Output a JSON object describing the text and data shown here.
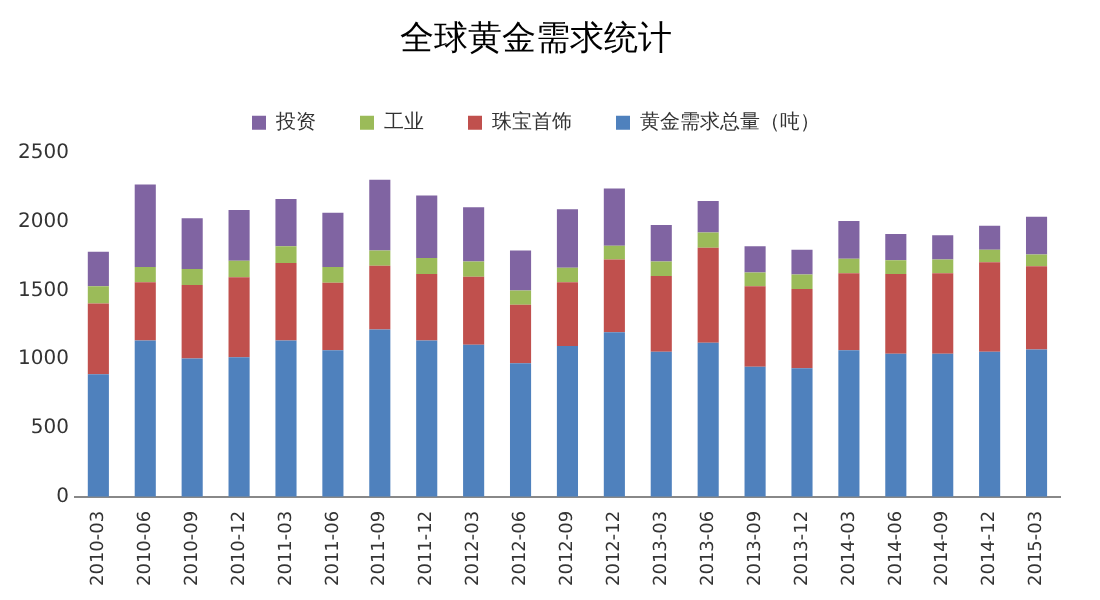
{
  "chart_data": {
    "type": "bar",
    "title": "全球黄金需求统计",
    "stacked": true,
    "categories": [
      "2010-03",
      "2010-06",
      "2010-09",
      "2010-12",
      "2011-03",
      "2011-06",
      "2011-09",
      "2011-12",
      "2012-03",
      "2012-06",
      "2012-09",
      "2012-12",
      "2013-03",
      "2013-06",
      "2013-09",
      "2013-12",
      "2014-03",
      "2014-06",
      "2014-09",
      "2014-12",
      "2015-03"
    ],
    "series": [
      {
        "name": "黄金需求总量（吨）",
        "color": "#4f81bd",
        "values": [
          890,
          1135,
          1005,
          1015,
          1135,
          1065,
          1215,
          1135,
          1105,
          970,
          1095,
          1195,
          1055,
          1120,
          945,
          935,
          1065,
          1040,
          1040,
          1055,
          1070
        ]
      },
      {
        "name": "珠宝首饰",
        "color": "#c0504d",
        "values": [
          515,
          425,
          535,
          580,
          565,
          490,
          465,
          485,
          495,
          425,
          465,
          530,
          550,
          690,
          585,
          575,
          560,
          580,
          585,
          650,
          605
        ]
      },
      {
        "name": "工业",
        "color": "#9bbb59",
        "values": [
          125,
          110,
          115,
          120,
          120,
          115,
          110,
          115,
          110,
          105,
          105,
          100,
          105,
          110,
          100,
          105,
          105,
          100,
          100,
          90,
          85
        ]
      },
      {
        "name": "投资",
        "color": "#8064a2",
        "values": [
          250,
          600,
          370,
          370,
          345,
          395,
          515,
          455,
          395,
          290,
          425,
          415,
          265,
          230,
          190,
          180,
          275,
          190,
          175,
          175,
          275
        ]
      }
    ],
    "ylim": [
      0,
      2500
    ],
    "yticks": [
      0,
      500,
      1000,
      1500,
      2000,
      2500
    ],
    "grid": false,
    "legend": "top"
  }
}
